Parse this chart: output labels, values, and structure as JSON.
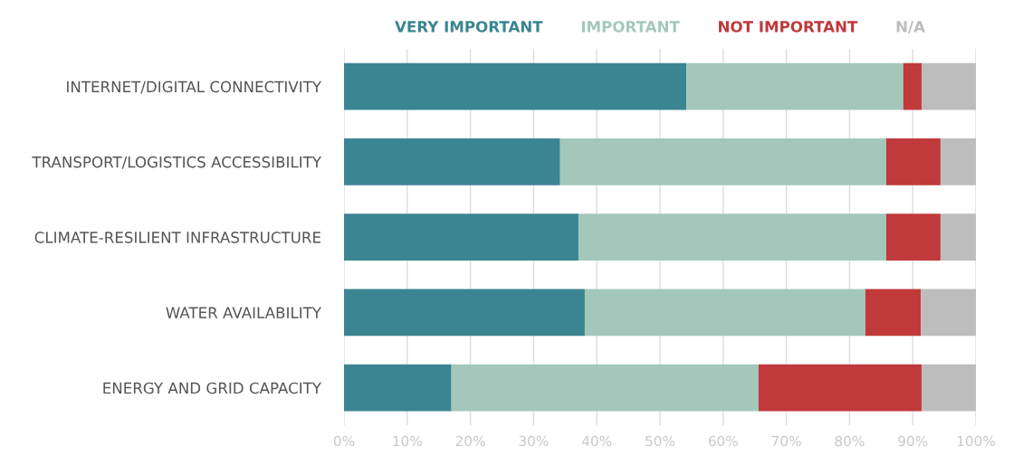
{
  "chart_data": {
    "type": "bar",
    "orientation": "horizontal",
    "stacked": true,
    "categories": [
      "INTERNET/DIGITAL CONNECTIVITY",
      "TRANSPORT/LOGISTICS ACCESSIBILITY",
      "CLIMATE-RESILIENT INFRASTRUCTURE",
      "WATER AVAILABILITY",
      "ENERGY AND GRID CAPACITY"
    ],
    "series": [
      {
        "name": "VERY IMPORTANT",
        "color": "#3a8591",
        "values": [
          54.2,
          34.2,
          37.1,
          38.1,
          17.0
        ]
      },
      {
        "name": "IMPORTANT",
        "color": "#a3c8bb",
        "values": [
          34.3,
          51.6,
          48.7,
          44.4,
          48.6
        ]
      },
      {
        "name": "NOT IMPORTANT",
        "color": "#c0393b",
        "values": [
          2.9,
          8.6,
          8.6,
          8.8,
          25.8
        ]
      },
      {
        "name": "N/A",
        "color": "#bdbdbd",
        "values": [
          8.6,
          5.6,
          5.6,
          8.7,
          8.6
        ]
      }
    ],
    "xlim": [
      0,
      100
    ],
    "xticks": [
      {
        "value": 0,
        "label": "0%"
      },
      {
        "value": 10,
        "label": "10%"
      },
      {
        "value": 20,
        "label": "20%"
      },
      {
        "value": 30,
        "label": "30%"
      },
      {
        "value": 40,
        "label": "40%"
      },
      {
        "value": 50,
        "label": "50%"
      },
      {
        "value": 60,
        "label": "60%"
      },
      {
        "value": 70,
        "label": "70%"
      },
      {
        "value": 80,
        "label": "80%"
      },
      {
        "value": 90,
        "label": "90%"
      },
      {
        "value": 100,
        "label": "100%"
      }
    ],
    "grid": "x",
    "legend": "top"
  }
}
